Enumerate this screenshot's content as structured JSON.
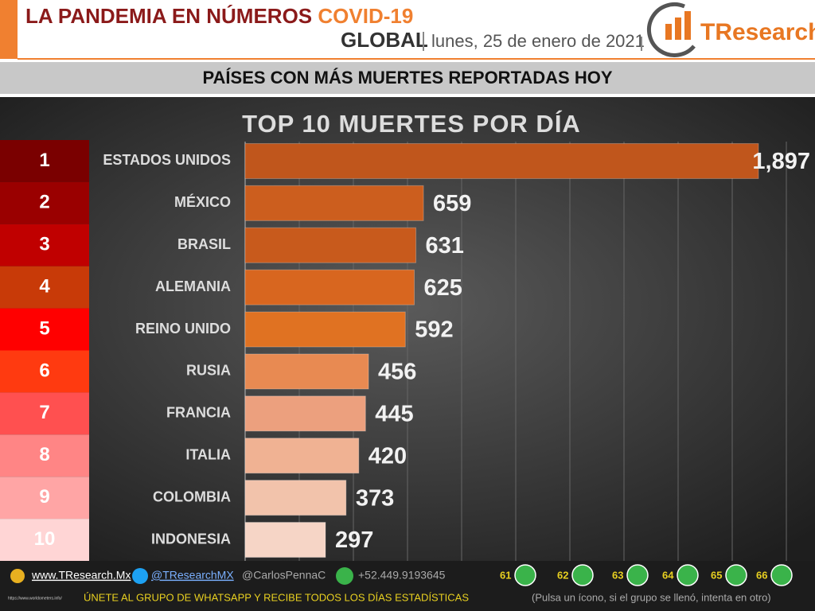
{
  "header": {
    "title": "LA PANDEMIA EN NÚMEROS",
    "title_highlight": "COVID-19",
    "scope": "GLOBAL",
    "date": "lunes, 25 de enero de 2021",
    "logo": "TResearch"
  },
  "banner": "PAÍSES CON MÁS MUERTES REPORTADAS HOY",
  "chart_data": {
    "type": "bar",
    "orientation": "horizontal",
    "title": "TOP 10 MUERTES POR DÍA",
    "ranks": [
      1,
      2,
      3,
      4,
      5,
      6,
      7,
      8,
      9,
      10
    ],
    "rank_colors": [
      "#7a0000",
      "#9a0000",
      "#c00000",
      "#c83a08",
      "#ff0000",
      "#ff3a10",
      "#ff5050",
      "#ff8585",
      "#ffa5a5",
      "#ffd5d5"
    ],
    "categories": [
      "ESTADOS UNIDOS",
      "MÉXICO",
      "BRASIL",
      "ALEMANIA",
      "REINO UNIDO",
      "RUSIA",
      "FRANCIA",
      "ITALIA",
      "COLOMBIA",
      "INDONESIA"
    ],
    "values": [
      1897,
      659,
      631,
      625,
      592,
      456,
      445,
      420,
      373,
      297
    ],
    "value_labels": [
      "1,897",
      "659",
      "631",
      "625",
      "592",
      "456",
      "445",
      "420",
      "373",
      "297"
    ],
    "colors": [
      "#c0561c",
      "#cc5e1e",
      "#c85a1c",
      "#d8661f",
      "#e07222",
      "#e88a52",
      "#eca07e",
      "#f0b293",
      "#f2c3ab",
      "#f6d5c6"
    ],
    "xlim": [
      0,
      2000
    ],
    "xticks": [
      0,
      200,
      400,
      600,
      800,
      1000,
      1200,
      1400,
      1600,
      1800,
      2000
    ],
    "grid": true
  },
  "footer": {
    "website": "www.TResearch.Mx",
    "twitter": "@TResearchMX",
    "twitter_2": "@CarlosPennaC",
    "phone": "+52.449.9193645",
    "groups": [
      61,
      62,
      63,
      64,
      65,
      66
    ],
    "call": "ÚNETE AL GRUPO DE WHATSAPP Y RECIBE TODOS LOS DÍAS ESTADÍSTICAS",
    "note": "(Pulsa un ícono, si el grupo se llenó, intenta en otro)",
    "source": "https://www.worldometers.info/"
  }
}
